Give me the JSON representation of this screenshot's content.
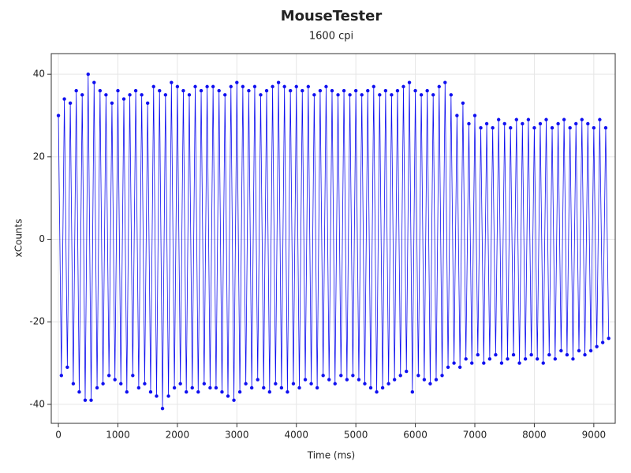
{
  "chart_data": {
    "type": "line",
    "title": "MouseTester",
    "subtitle": "1600 cpi",
    "x_label": "Time (ms)",
    "y_label": "xCounts",
    "color": "#1010f0",
    "grid": true,
    "markers": true,
    "xlim": [
      -120,
      9360
    ],
    "xticks": [
      0,
      1000,
      2000,
      3000,
      4000,
      5000,
      6000,
      7000,
      8000,
      9000
    ],
    "ylim": [
      -44.6,
      45
    ],
    "yticks": [
      -40,
      -20,
      0,
      20,
      40
    ],
    "x": [
      0,
      50,
      100,
      150,
      200,
      250,
      300,
      350,
      400,
      450,
      500,
      550,
      600,
      650,
      700,
      750,
      800,
      850,
      900,
      950,
      1000,
      1050,
      1100,
      1150,
      1200,
      1250,
      1300,
      1350,
      1400,
      1450,
      1500,
      1550,
      1600,
      1650,
      1700,
      1750,
      1800,
      1850,
      1900,
      1950,
      2000,
      2050,
      2100,
      2150,
      2200,
      2250,
      2300,
      2350,
      2400,
      2450,
      2500,
      2550,
      2600,
      2650,
      2700,
      2750,
      2800,
      2850,
      2900,
      2950,
      3000,
      3050,
      3100,
      3150,
      3200,
      3250,
      3300,
      3350,
      3400,
      3450,
      3500,
      3550,
      3600,
      3650,
      3700,
      3750,
      3800,
      3850,
      3900,
      3950,
      4000,
      4050,
      4100,
      4150,
      4200,
      4250,
      4300,
      4350,
      4400,
      4450,
      4500,
      4550,
      4600,
      4650,
      4700,
      4750,
      4800,
      4850,
      4900,
      4950,
      5000,
      5050,
      5100,
      5150,
      5200,
      5250,
      5300,
      5350,
      5400,
      5450,
      5500,
      5550,
      5600,
      5650,
      5700,
      5750,
      5800,
      5850,
      5900,
      5950,
      6000,
      6050,
      6100,
      6150,
      6200,
      6250,
      6300,
      6350,
      6400,
      6450,
      6500,
      6550,
      6600,
      6650,
      6700,
      6750,
      6800,
      6850,
      6900,
      6950,
      7000,
      7050,
      7100,
      7150,
      7200,
      7250,
      7300,
      7350,
      7400,
      7450,
      7500,
      7550,
      7600,
      7650,
      7700,
      7750,
      7800,
      7850,
      7900,
      7950,
      8000,
      8050,
      8100,
      8150,
      8200,
      8250,
      8300,
      8350,
      8400,
      8450,
      8500,
      8550,
      8600,
      8650,
      8700,
      8750,
      8800,
      8850,
      8900,
      8950,
      9000,
      9050,
      9100,
      9150,
      9200,
      9250
    ],
    "values": [
      30,
      -33,
      34,
      -31,
      33,
      -35,
      36,
      -37,
      35,
      -39,
      40,
      -39,
      38,
      -36,
      36,
      -35,
      35,
      -33,
      33,
      -34,
      36,
      -35,
      34,
      -37,
      35,
      -33,
      36,
      -36,
      35,
      -35,
      33,
      -37,
      37,
      -38,
      36,
      -41,
      35,
      -38,
      38,
      -36,
      37,
      -35,
      36,
      -37,
      35,
      -36,
      37,
      -37,
      36,
      -35,
      37,
      -36,
      37,
      -36,
      36,
      -37,
      35,
      -38,
      37,
      -39,
      38,
      -37,
      37,
      -35,
      36,
      -36,
      37,
      -34,
      35,
      -36,
      36,
      -37,
      37,
      -35,
      38,
      -36,
      37,
      -37,
      36,
      -35,
      37,
      -36,
      36,
      -34,
      37,
      -35,
      35,
      -36,
      36,
      -33,
      37,
      -34,
      36,
      -35,
      35,
      -33,
      36,
      -34,
      35,
      -33,
      36,
      -34,
      35,
      -35,
      36,
      -36,
      37,
      -37,
      35,
      -36,
      36,
      -35,
      35,
      -34,
      36,
      -33,
      37,
      -32,
      38,
      -37,
      36,
      -33,
      35,
      -34,
      36,
      -35,
      35,
      -34,
      37,
      -33,
      38,
      -31,
      35,
      -30,
      30,
      -31,
      33,
      -29,
      28,
      -30,
      30,
      -28,
      27,
      -30,
      28,
      -29,
      27,
      -28,
      29,
      -30,
      28,
      -29,
      27,
      -28,
      29,
      -30,
      28,
      -29,
      29,
      -28,
      27,
      -29,
      28,
      -30,
      29,
      -28,
      27,
      -29,
      28,
      -27,
      29,
      -28,
      27,
      -29,
      28,
      -27,
      29,
      -28,
      28,
      -27,
      27,
      -26,
      29,
      -25,
      27,
      -24
    ]
  }
}
